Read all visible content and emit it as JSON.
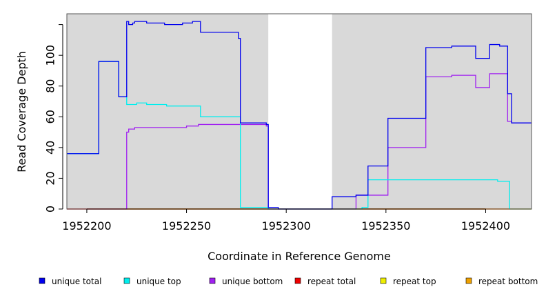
{
  "chart_data": {
    "type": "line",
    "title": "",
    "xlabel": "Coordinate in Reference Genome",
    "ylabel": "Read Coverage Depth",
    "xlim": [
      1952190,
      1952423
    ],
    "ylim": [
      0,
      127
    ],
    "x_ticks": [
      1952200,
      1952250,
      1952300,
      1952350,
      1952400
    ],
    "x_tick_labels": [
      "1952200",
      "1952250",
      "1952300",
      "1952350",
      "1952400"
    ],
    "y_ticks": [
      0,
      20,
      40,
      60,
      80,
      100
    ],
    "y_tick_labels": [
      "0",
      "20",
      "40",
      "60",
      "80",
      "100"
    ],
    "gap_region": [
      1952291,
      1952323
    ],
    "background_color": "#d9d9d9",
    "grid": false,
    "legend_position": "bottom",
    "series": [
      {
        "name": "unique total",
        "color": "#0000ee",
        "points": [
          [
            1952190,
            36
          ],
          [
            1952206,
            36
          ],
          [
            1952206,
            96
          ],
          [
            1952216,
            96
          ],
          [
            1952216,
            73
          ],
          [
            1952220,
            73
          ],
          [
            1952220,
            122
          ],
          [
            1952221,
            122
          ],
          [
            1952221,
            120
          ],
          [
            1952223,
            120
          ],
          [
            1952223,
            121
          ],
          [
            1952224,
            121
          ],
          [
            1952224,
            122
          ],
          [
            1952230,
            122
          ],
          [
            1952230,
            121
          ],
          [
            1952239,
            121
          ],
          [
            1952239,
            120
          ],
          [
            1952248,
            120
          ],
          [
            1952248,
            121
          ],
          [
            1952253,
            121
          ],
          [
            1952253,
            122
          ],
          [
            1952257,
            122
          ],
          [
            1952257,
            115
          ],
          [
            1952276,
            115
          ],
          [
            1952276,
            111
          ],
          [
            1952277,
            111
          ],
          [
            1952277,
            56
          ],
          [
            1952290,
            56
          ],
          [
            1952290,
            55
          ],
          [
            1952291,
            55
          ],
          [
            1952291,
            1
          ],
          [
            1952296,
            1
          ],
          [
            1952296,
            0
          ],
          [
            1952323,
            0
          ],
          [
            1952323,
            8
          ],
          [
            1952335,
            8
          ],
          [
            1952335,
            9
          ],
          [
            1952341,
            9
          ],
          [
            1952341,
            28
          ],
          [
            1952351,
            28
          ],
          [
            1952351,
            59
          ],
          [
            1952370,
            59
          ],
          [
            1952370,
            105
          ],
          [
            1952383,
            105
          ],
          [
            1952383,
            106
          ],
          [
            1952395,
            106
          ],
          [
            1952395,
            98
          ],
          [
            1952402,
            98
          ],
          [
            1952402,
            107
          ],
          [
            1952407,
            107
          ],
          [
            1952407,
            106
          ],
          [
            1952411,
            106
          ],
          [
            1952411,
            75
          ],
          [
            1952413,
            75
          ],
          [
            1952413,
            56
          ],
          [
            1952423,
            56
          ]
        ]
      },
      {
        "name": "unique top",
        "color": "#00eeee",
        "points": [
          [
            1952190,
            36
          ],
          [
            1952206,
            36
          ],
          [
            1952206,
            96
          ],
          [
            1952216,
            96
          ],
          [
            1952216,
            73
          ],
          [
            1952220,
            73
          ],
          [
            1952220,
            68
          ],
          [
            1952225,
            68
          ],
          [
            1952225,
            69
          ],
          [
            1952230,
            69
          ],
          [
            1952230,
            68
          ],
          [
            1952240,
            68
          ],
          [
            1952240,
            67
          ],
          [
            1952257,
            67
          ],
          [
            1952257,
            60
          ],
          [
            1952277,
            60
          ],
          [
            1952277,
            1
          ],
          [
            1952291,
            1
          ],
          [
            1952291,
            0
          ],
          [
            1952323,
            0
          ],
          [
            1952338,
            0
          ],
          [
            1952338,
            1
          ],
          [
            1952341,
            1
          ],
          [
            1952341,
            19
          ],
          [
            1952406,
            19
          ],
          [
            1952406,
            18
          ],
          [
            1952412,
            18
          ],
          [
            1952412,
            0
          ],
          [
            1952423,
            0
          ]
        ]
      },
      {
        "name": "unique bottom",
        "color": "#a020f0",
        "points": [
          [
            1952190,
            0
          ],
          [
            1952220,
            0
          ],
          [
            1952220,
            50
          ],
          [
            1952221,
            50
          ],
          [
            1952221,
            52
          ],
          [
            1952224,
            52
          ],
          [
            1952224,
            53
          ],
          [
            1952250,
            53
          ],
          [
            1952250,
            54
          ],
          [
            1952256,
            54
          ],
          [
            1952256,
            55
          ],
          [
            1952290,
            55
          ],
          [
            1952290,
            54
          ],
          [
            1952291,
            54
          ],
          [
            1952291,
            0
          ],
          [
            1952323,
            0
          ],
          [
            1952335,
            0
          ],
          [
            1952335,
            9
          ],
          [
            1952351,
            9
          ],
          [
            1952351,
            40
          ],
          [
            1952370,
            40
          ],
          [
            1952370,
            86
          ],
          [
            1952383,
            86
          ],
          [
            1952383,
            87
          ],
          [
            1952395,
            87
          ],
          [
            1952395,
            79
          ],
          [
            1952402,
            79
          ],
          [
            1952402,
            88
          ],
          [
            1952411,
            88
          ],
          [
            1952411,
            57
          ],
          [
            1952413,
            57
          ],
          [
            1952413,
            56
          ],
          [
            1952423,
            56
          ]
        ]
      },
      {
        "name": "repeat total",
        "color": "#ee0000",
        "points": [
          [
            1952190,
            0
          ],
          [
            1952291,
            0
          ],
          [
            1952323,
            0
          ],
          [
            1952423,
            0
          ]
        ]
      },
      {
        "name": "repeat top",
        "color": "#eeee00",
        "points": [
          [
            1952190,
            0
          ],
          [
            1952291,
            0
          ],
          [
            1952323,
            0
          ],
          [
            1952423,
            0
          ]
        ]
      },
      {
        "name": "repeat bottom",
        "color": "#eea000",
        "points": [
          [
            1952190,
            0
          ],
          [
            1952291,
            0
          ],
          [
            1952323,
            0
          ],
          [
            1952423,
            0
          ]
        ]
      }
    ]
  }
}
